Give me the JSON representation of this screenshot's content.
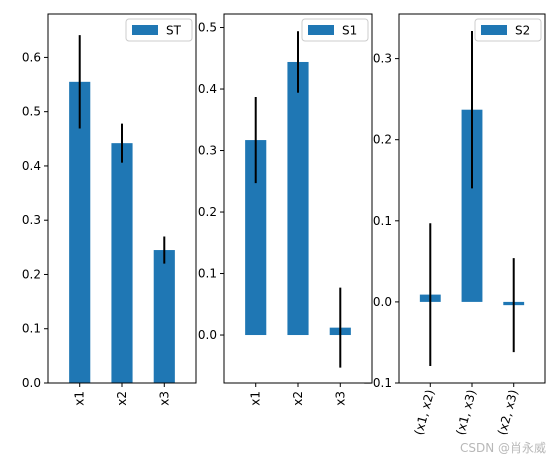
{
  "watermark": "CSDN @肖永威",
  "colors": {
    "bar": "#1f77b4",
    "error": "#000000",
    "axis": "#000000",
    "background": "#ffffff"
  },
  "chart_data": [
    {
      "type": "bar",
      "categories": [
        "x1",
        "x2",
        "x3"
      ],
      "series": [
        {
          "name": "ST",
          "values": [
            0.555,
            0.442,
            0.245
          ],
          "errors": [
            0.086,
            0.036,
            0.025
          ]
        }
      ],
      "ylim": [
        0.0,
        0.68
      ],
      "yticks": [
        0.0,
        0.1,
        0.2,
        0.3,
        0.4,
        0.5,
        0.6
      ],
      "ytick_labels": [
        "0.0",
        "0.1",
        "0.2",
        "0.3",
        "0.4",
        "0.5",
        "0.6"
      ],
      "legend": "top-right",
      "grid": false
    },
    {
      "type": "bar",
      "categories": [
        "x1",
        "x2",
        "x3"
      ],
      "series": [
        {
          "name": "S1",
          "values": [
            0.317,
            0.444,
            0.012
          ],
          "errors": [
            0.07,
            0.05,
            0.065
          ]
        }
      ],
      "ylim": [
        -0.078,
        0.522
      ],
      "yticks": [
        0.0,
        0.1,
        0.2,
        0.3,
        0.4,
        0.5
      ],
      "ytick_labels": [
        "0.0",
        "0.1",
        "0.2",
        "0.3",
        "0.4",
        "0.5"
      ],
      "legend": "top-right",
      "grid": false
    },
    {
      "type": "bar",
      "categories": [
        "(x1, x2)",
        "(x1, x3)",
        "(x2, x3)"
      ],
      "series": [
        {
          "name": "S2",
          "values": [
            0.009,
            0.237,
            -0.004
          ],
          "errors": [
            0.088,
            0.097,
            0.058
          ]
        }
      ],
      "ylim": [
        -0.1,
        0.355
      ],
      "yticks": [
        -0.1,
        0.0,
        0.1,
        0.2,
        0.3
      ],
      "ytick_labels": [
        "−0.1",
        "0.0",
        "0.1",
        "0.2",
        "0.3"
      ],
      "legend": "top-right",
      "grid": false
    }
  ]
}
